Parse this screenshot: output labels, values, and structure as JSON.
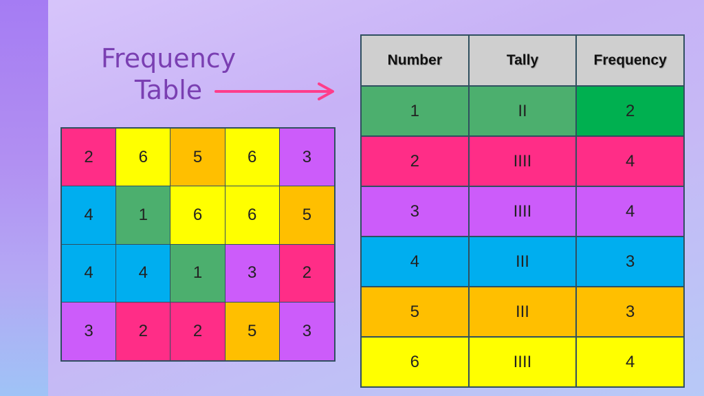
{
  "title": {
    "line1": "Frequency",
    "line2": "Table"
  },
  "colors": {
    "pink": "#ff2d87",
    "yellow": "#ffff00",
    "orange": "#ffbf00",
    "purple": "#cc5cfa",
    "blue": "#00aeef",
    "green": "#4caf6e",
    "bright_green": "#00b050",
    "arrow": "#ff3d8b"
  },
  "grid": [
    [
      {
        "value": "2",
        "color": "#ff2d87"
      },
      {
        "value": "6",
        "color": "#ffff00"
      },
      {
        "value": "5",
        "color": "#ffbf00"
      },
      {
        "value": "6",
        "color": "#ffff00"
      },
      {
        "value": "3",
        "color": "#cc5cfa"
      }
    ],
    [
      {
        "value": "4",
        "color": "#00aeef"
      },
      {
        "value": "1",
        "color": "#4caf6e"
      },
      {
        "value": "6",
        "color": "#ffff00"
      },
      {
        "value": "6",
        "color": "#ffff00"
      },
      {
        "value": "5",
        "color": "#ffbf00"
      }
    ],
    [
      {
        "value": "4",
        "color": "#00aeef"
      },
      {
        "value": "4",
        "color": "#00aeef"
      },
      {
        "value": "1",
        "color": "#4caf6e"
      },
      {
        "value": "3",
        "color": "#cc5cfa"
      },
      {
        "value": "2",
        "color": "#ff2d87"
      }
    ],
    [
      {
        "value": "3",
        "color": "#cc5cfa"
      },
      {
        "value": "2",
        "color": "#ff2d87"
      },
      {
        "value": "2",
        "color": "#ff2d87"
      },
      {
        "value": "5",
        "color": "#ffbf00"
      },
      {
        "value": "3",
        "color": "#cc5cfa"
      }
    ]
  ],
  "table": {
    "headers": [
      "Number",
      "Tally",
      "Frequency"
    ],
    "rows": [
      {
        "number": "1",
        "tally": "II",
        "frequency": "2",
        "color": "#4caf6e",
        "freq_color": "#00b050"
      },
      {
        "number": "2",
        "tally": "IIII",
        "frequency": "4",
        "color": "#ff2d87",
        "freq_color": "#ff2d87"
      },
      {
        "number": "3",
        "tally": "IIII",
        "frequency": "4",
        "color": "#cc5cfa",
        "freq_color": "#cc5cfa"
      },
      {
        "number": "4",
        "tally": "III",
        "frequency": "3",
        "color": "#00aeef",
        "freq_color": "#00aeef"
      },
      {
        "number": "5",
        "tally": "III",
        "frequency": "3",
        "color": "#ffbf00",
        "freq_color": "#ffbf00"
      },
      {
        "number": "6",
        "tally": "IIII",
        "frequency": "4",
        "color": "#ffff00",
        "freq_color": "#ffff00"
      }
    ]
  }
}
